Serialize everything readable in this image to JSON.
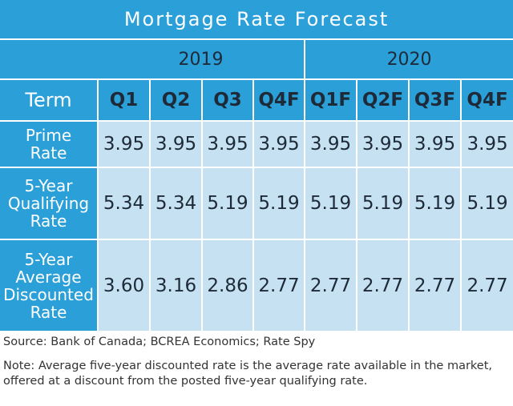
{
  "chart_data": {
    "type": "table",
    "title": "Mortgage Rate Forecast",
    "years": [
      {
        "label": "2019",
        "span": 4
      },
      {
        "label": "2020",
        "span": 4
      }
    ],
    "term_header": "Term",
    "columns": [
      "Q1",
      "Q2",
      "Q3",
      "Q4F",
      "Q1F",
      "Q2F",
      "Q3F",
      "Q4F"
    ],
    "rows": [
      {
        "label": [
          "Prime",
          "Rate"
        ],
        "values": [
          "3.95",
          "3.95",
          "3.95",
          "3.95",
          "3.95",
          "3.95",
          "3.95",
          "3.95"
        ]
      },
      {
        "label": [
          "5-Year",
          "Qualifying",
          "Rate"
        ],
        "values": [
          "5.34",
          "5.34",
          "5.19",
          "5.19",
          "5.19",
          "5.19",
          "5.19",
          "5.19"
        ]
      },
      {
        "label": [
          "5-Year",
          "Average",
          "Discounted",
          "Rate"
        ],
        "values": [
          "3.60",
          "3.16",
          "2.86",
          "2.77",
          "2.77",
          "2.77",
          "2.77",
          "2.77"
        ]
      }
    ]
  },
  "footer": {
    "source": "Source: Bank of Canada; BCREA Economics; Rate Spy",
    "note": "Note: Average five-year discounted rate is the average rate available in the market, offered at a discount from the posted five-year qualifying rate."
  },
  "colors": {
    "header_blue": "#2a9fd8",
    "cell_light_blue": "#c5e1f2",
    "dark_text": "#1e2a38"
  }
}
